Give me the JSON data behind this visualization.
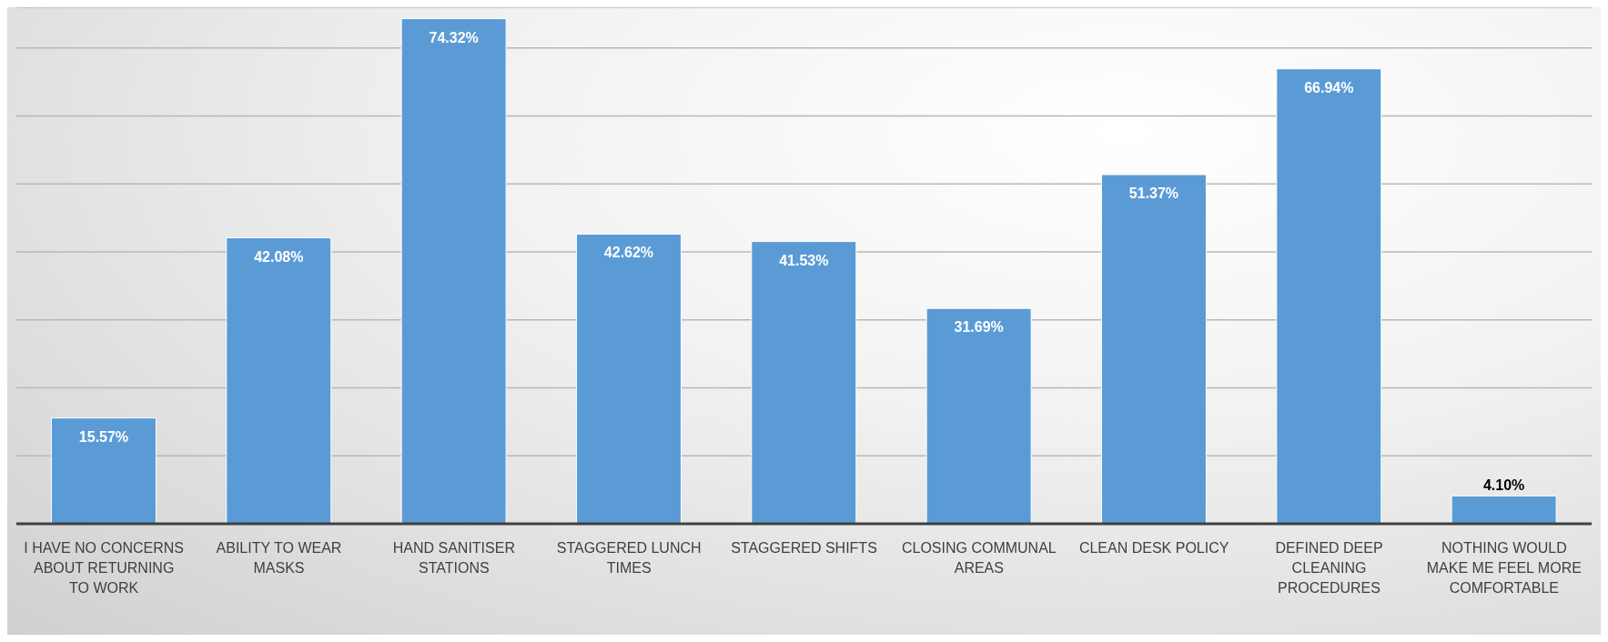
{
  "chart_data": {
    "type": "bar",
    "categories": [
      "I HAVE NO CONCERNS ABOUT RETURNING TO WORK",
      "ABILITY TO WEAR MASKS",
      "HAND SANITISER STATIONS",
      "STAGGERED LUNCH TIMES",
      "STAGGERED SHIFTS",
      "CLOSING COMMUNAL AREAS",
      "CLEAN DESK POLICY",
      "DEFINED DEEP CLEANING PROCEDURES",
      "NOTHING WOULD MAKE ME FEEL MORE COMFORTABLE"
    ],
    "values": [
      15.57,
      42.08,
      74.32,
      42.62,
      41.53,
      31.69,
      51.37,
      66.94,
      4.1
    ],
    "value_labels": [
      "15.57%",
      "42.08%",
      "74.32%",
      "42.62%",
      "41.53%",
      "31.69%",
      "51.37%",
      "66.94%",
      "4.10%"
    ],
    "color": "#5b9bd5",
    "ylim": [
      0,
      76
    ],
    "yticks": [
      {
        "value": 0,
        "label": null
      },
      {
        "value": 10,
        "label": null
      },
      {
        "value": 20,
        "label": null
      },
      {
        "value": 30,
        "label": null
      },
      {
        "value": 40,
        "label": null
      },
      {
        "value": 50,
        "label": null
      },
      {
        "value": 60,
        "label": null
      },
      {
        "value": 70,
        "label": null
      }
    ],
    "grid": "y"
  }
}
